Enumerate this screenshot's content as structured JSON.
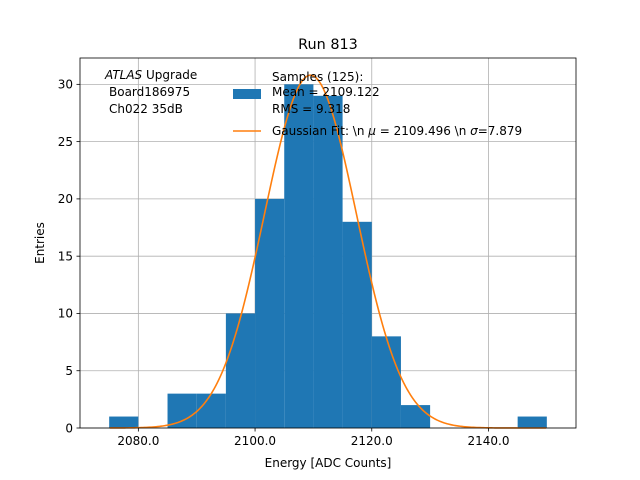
{
  "chart_data": {
    "type": "bar",
    "title": "Run 813",
    "xlabel": "Energy [ADC Counts]",
    "ylabel": "Entries",
    "xlim": [
      2070,
      2155
    ],
    "ylim": [
      0,
      32.3
    ],
    "xticks": [
      2080,
      2100,
      2120,
      2140
    ],
    "xtick_labels": [
      "2080.0",
      "2100.0",
      "2120.0",
      "2140.0"
    ],
    "yticks": [
      0,
      5,
      10,
      15,
      20,
      25,
      30
    ],
    "ytick_labels": [
      "0",
      "5",
      "10",
      "15",
      "20",
      "25",
      "30"
    ],
    "grid": true,
    "bins": [
      {
        "x0": 2075,
        "x1": 2080,
        "count": 1
      },
      {
        "x0": 2080,
        "x1": 2085,
        "count": 0
      },
      {
        "x0": 2085,
        "x1": 2090,
        "count": 3
      },
      {
        "x0": 2090,
        "x1": 2095,
        "count": 3
      },
      {
        "x0": 2095,
        "x1": 2100,
        "count": 10
      },
      {
        "x0": 2100,
        "x1": 2105,
        "count": 20
      },
      {
        "x0": 2105,
        "x1": 2110,
        "count": 30
      },
      {
        "x0": 2110,
        "x1": 2115,
        "count": 29
      },
      {
        "x0": 2115,
        "x1": 2120,
        "count": 18
      },
      {
        "x0": 2120,
        "x1": 2125,
        "count": 8
      },
      {
        "x0": 2125,
        "x1": 2130,
        "count": 2
      },
      {
        "x0": 2130,
        "x1": 2135,
        "count": 0
      },
      {
        "x0": 2135,
        "x1": 2140,
        "count": 0
      },
      {
        "x0": 2140,
        "x1": 2145,
        "count": 0
      },
      {
        "x0": 2145,
        "x1": 2150,
        "count": 1
      }
    ],
    "fit": {
      "mu": 2109.496,
      "sigma": 7.879,
      "amplitude": 30.8
    },
    "colors": {
      "bars": "#1f77b4",
      "fit": "#ff7f0e",
      "grid": "#b0b0b0"
    },
    "annotation": {
      "atlas": "ATLAS",
      "upgrade": " Upgrade",
      "board": "Board186975",
      "channel": "Ch022 35dB"
    },
    "legend": {
      "placement": "top-center",
      "hist_label_line1": "Samples (125):",
      "hist_label_line2": "Mean = 2109.122",
      "hist_label_line3": "RMS = 9.318",
      "fit_label_prefix": "Gaussian Fit: \\n ",
      "fit_mu_symbol": "μ",
      "fit_mu_value": " = 2109.496 \\n ",
      "fit_sigma_symbol": "σ",
      "fit_sigma_value": "=7.879"
    }
  }
}
